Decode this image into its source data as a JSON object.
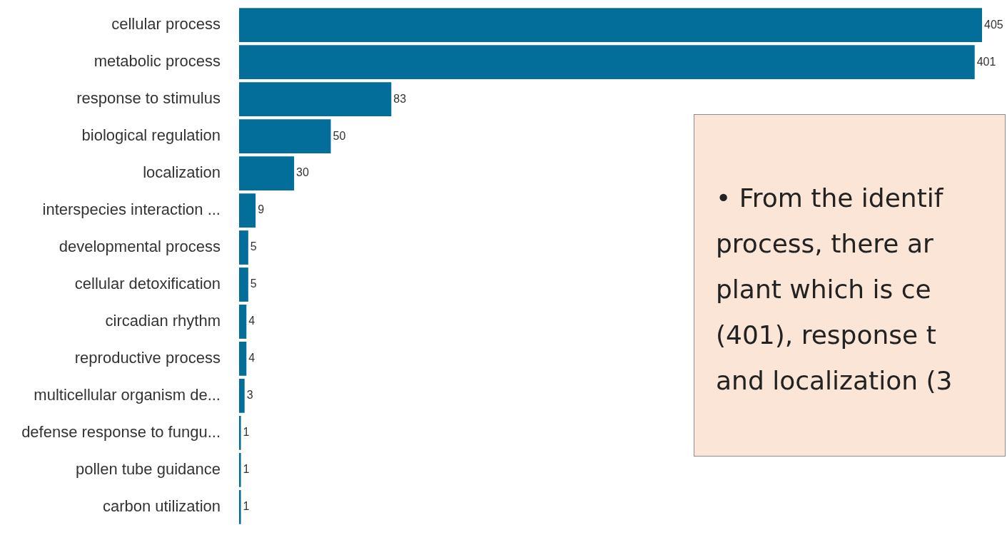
{
  "chart_data": {
    "type": "bar",
    "orientation": "horizontal",
    "data_labels": true,
    "color": "#036e9a",
    "categories": [
      "cellular process",
      "metabolic process",
      "response to stimulus",
      "biological regulation",
      "localization",
      "interspecies interaction ...",
      "developmental process",
      "cellular detoxification",
      "circadian rhythm",
      "reproductive process",
      "multicellular organism de...",
      "defense response to fungu...",
      "pollen tube guidance",
      "carbon utilization"
    ],
    "values": [
      405,
      401,
      83,
      50,
      30,
      9,
      5,
      5,
      4,
      4,
      3,
      1,
      1,
      1
    ],
    "annotations": [
      "• From the identif\nprocess, there ar\nplant which is ce\n(401), response t\nand localization (3"
    ]
  }
}
